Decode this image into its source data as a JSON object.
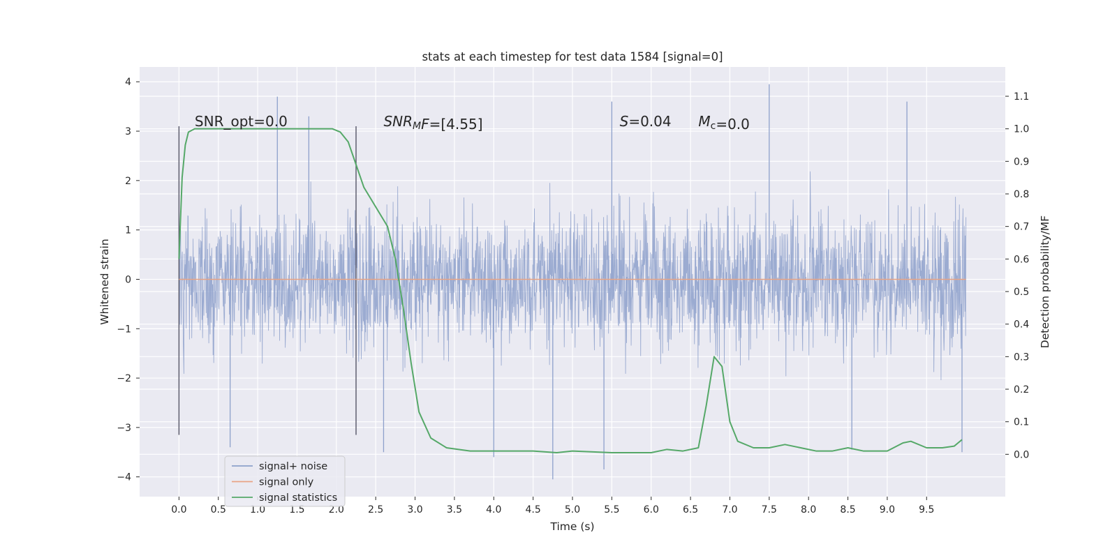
{
  "chart_data": {
    "type": "line",
    "title": "stats at each timestep for test data 1584 [signal=0]",
    "xlabel": "Time (s)",
    "ylabel": "Whitened strain",
    "ylabel_right": "Detection probability/MF",
    "xlim": [
      -0.5,
      10.5
    ],
    "ylim": [
      -4.4,
      4.3
    ],
    "ylim_right": [
      -0.13,
      1.19
    ],
    "x_ticks": [
      "0.0",
      "0.5",
      "1.0",
      "1.5",
      "2.0",
      "2.5",
      "3.0",
      "3.5",
      "4.0",
      "4.5",
      "5.0",
      "5.5",
      "6.0",
      "6.5",
      "7.0",
      "7.5",
      "8.0",
      "8.5",
      "9.0",
      "9.5"
    ],
    "y_ticks_left": [
      "4",
      "3",
      "2",
      "1",
      "0",
      "−1",
      "−2",
      "−3",
      "−4"
    ],
    "y_ticks_right": [
      "1.1",
      "1.0",
      "0.9",
      "0.8",
      "0.7",
      "0.6",
      "0.5",
      "0.4",
      "0.3",
      "0.2",
      "0.1",
      "0.0"
    ],
    "series": [
      {
        "name": "signal+ noise",
        "color": "#8da0cb",
        "axis": "left",
        "x_range": [
          0.0,
          10.0
        ],
        "typical_envelope": [
          -1.4,
          1.8
        ],
        "peaks": [
          {
            "x": 0.65,
            "y": -3.4
          },
          {
            "x": 1.25,
            "y": 3.7
          },
          {
            "x": 1.65,
            "y": 3.3
          },
          {
            "x": 2.6,
            "y": -3.5
          },
          {
            "x": 4.0,
            "y": -3.6
          },
          {
            "x": 4.75,
            "y": -4.05
          },
          {
            "x": 5.4,
            "y": -3.85
          },
          {
            "x": 5.5,
            "y": 3.6
          },
          {
            "x": 7.5,
            "y": 3.95
          },
          {
            "x": 8.55,
            "y": -3.45
          },
          {
            "x": 9.25,
            "y": 3.6
          },
          {
            "x": 9.95,
            "y": -3.5
          }
        ]
      },
      {
        "name": "signal only",
        "color": "#e8a384",
        "axis": "left",
        "x": [
          0.0,
          10.0
        ],
        "y": [
          0.0,
          0.0
        ]
      },
      {
        "name": "signal statistics",
        "color": "#55a868",
        "axis": "right",
        "x": [
          0.0,
          0.04,
          0.08,
          0.12,
          0.2,
          0.3,
          0.5,
          1.0,
          1.5,
          1.8,
          1.95,
          2.05,
          2.15,
          2.25,
          2.35,
          2.5,
          2.65,
          2.75,
          2.85,
          2.95,
          3.05,
          3.2,
          3.4,
          3.7,
          4.0,
          4.5,
          4.8,
          5.0,
          5.5,
          6.0,
          6.2,
          6.4,
          6.6,
          6.7,
          6.8,
          6.9,
          7.0,
          7.1,
          7.3,
          7.5,
          7.7,
          7.9,
          8.1,
          8.3,
          8.5,
          8.7,
          9.0,
          9.2,
          9.3,
          9.5,
          9.7,
          9.85,
          9.95
        ],
        "y": [
          0.6,
          0.85,
          0.95,
          0.99,
          1.0,
          1.0,
          1.0,
          1.0,
          1.0,
          1.0,
          1.0,
          0.99,
          0.96,
          0.89,
          0.82,
          0.76,
          0.7,
          0.6,
          0.45,
          0.28,
          0.13,
          0.05,
          0.02,
          0.01,
          0.01,
          0.01,
          0.005,
          0.01,
          0.005,
          0.005,
          0.015,
          0.01,
          0.02,
          0.15,
          0.3,
          0.27,
          0.1,
          0.04,
          0.02,
          0.02,
          0.03,
          0.02,
          0.01,
          0.01,
          0.02,
          0.01,
          0.01,
          0.035,
          0.04,
          0.02,
          0.02,
          0.025,
          0.045
        ]
      }
    ],
    "vertical_lines": [
      0.0,
      2.25
    ],
    "annotations": [
      {
        "text": "SNR_opt=0.0",
        "x": 0.2,
        "y": 3.1
      },
      {
        "parts": [
          {
            "t": "SNR",
            "style": "italic"
          },
          {
            "t": "M",
            "style": "italic-sub"
          },
          {
            "t": "F",
            "style": "italic"
          },
          {
            "t": "=[4.55]",
            "style": "normal"
          }
        ],
        "x": 2.6,
        "y": 3.1
      },
      {
        "parts": [
          {
            "t": "S",
            "style": "italic"
          },
          {
            "t": "=0.04",
            "style": "normal"
          }
        ],
        "x": 5.6,
        "y": 3.1
      },
      {
        "parts": [
          {
            "t": "M",
            "style": "italic"
          },
          {
            "t": "c",
            "style": "sub"
          },
          {
            "t": "=0.0",
            "style": "normal"
          }
        ],
        "x": 6.6,
        "y": 3.1
      }
    ],
    "legend": {
      "placement": "lower-left",
      "entries": [
        "signal+ noise",
        "signal only",
        "signal statistics"
      ]
    },
    "grid": true,
    "background": "#eaeaf2"
  }
}
